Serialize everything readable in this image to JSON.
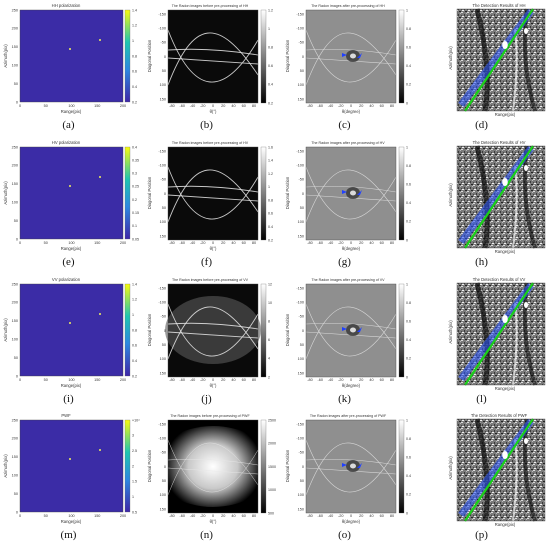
{
  "rows": [
    {
      "raw": {
        "title": "HH polarization",
        "xlabel": "Range(pix)",
        "ylabel": "Azimuth(pix)",
        "xticks": [
          "0",
          "50",
          "100",
          "150",
          "200"
        ],
        "yticks": [
          "250",
          "200",
          "150",
          "100",
          "50",
          "0"
        ],
        "cbar": [
          "1.4",
          "1.2",
          "1",
          "0.8",
          "0.6",
          "0.4",
          "0.2"
        ],
        "caption": "(a)"
      },
      "radon_before": {
        "title": "The Radon images before pre-processing of HH",
        "xlabel": "θ(°)",
        "ylabel": "Diagonal Position",
        "xticks": [
          "-80",
          "-60",
          "-40",
          "-20",
          "0",
          "20",
          "40",
          "60",
          "80"
        ],
        "yticks": [
          "-150",
          "-100",
          "-50",
          "0",
          "50",
          "100",
          "150"
        ],
        "cbar": [
          "1.2",
          "1",
          "0.8",
          "0.6",
          "0.4",
          "0.2"
        ],
        "caption": "(b)"
      },
      "radon_after": {
        "title": "The Radon images after pre-processing of HH",
        "xlabel": "θ(degree)",
        "ylabel": "Diagonal Position",
        "xticks": [
          "-80",
          "-60",
          "-40",
          "-20",
          "0",
          "20",
          "40",
          "60",
          "80"
        ],
        "yticks": [
          "-150",
          "-100",
          "-50",
          "0",
          "50",
          "100",
          "150"
        ],
        "cbar": [
          "1",
          "0.8",
          "0.6",
          "0.4",
          "0.2",
          "0"
        ],
        "caption": "(c)"
      },
      "detection": {
        "title": "The Detection Results of HH",
        "xlabel": "Range(pix)",
        "ylabel": "Azimuth(pix)",
        "caption": "(d)"
      }
    },
    {
      "raw": {
        "title": "HV polarization",
        "xlabel": "Range(pix)",
        "ylabel": "Azimuth(pix)",
        "xticks": [
          "0",
          "50",
          "100",
          "150",
          "200"
        ],
        "yticks": [
          "250",
          "200",
          "150",
          "100",
          "50",
          "0"
        ],
        "cbar": [
          "0.4",
          "0.35",
          "0.3",
          "0.25",
          "0.2",
          "0.15",
          "0.1",
          "0.05"
        ],
        "caption": "(e)"
      },
      "radon_before": {
        "title": "The Radon images before pre-processing of HV",
        "xlabel": "θ(°)",
        "ylabel": "Diagonal Position",
        "xticks": [
          "-80",
          "-60",
          "-40",
          "-20",
          "0",
          "20",
          "40",
          "60",
          "80"
        ],
        "yticks": [
          "-150",
          "-100",
          "-50",
          "0",
          "50",
          "100",
          "150"
        ],
        "cbar": [
          "1.6",
          "1.4",
          "1.2",
          "1",
          "0.8",
          "0.6",
          "0.4",
          "0.2"
        ],
        "caption": "(f)"
      },
      "radon_after": {
        "title": "The Radon images after pre-processing of HV",
        "xlabel": "θ(degree)",
        "ylabel": "Diagonal Position",
        "xticks": [
          "-80",
          "-60",
          "-40",
          "-20",
          "0",
          "20",
          "40",
          "60",
          "80"
        ],
        "yticks": [
          "-150",
          "-100",
          "-50",
          "0",
          "50",
          "100",
          "150"
        ],
        "cbar": [
          "1",
          "0.8",
          "0.6",
          "0.4",
          "0.2",
          "0"
        ],
        "caption": "(g)"
      },
      "detection": {
        "title": "The Detection Results of HV",
        "xlabel": "Range(pix)",
        "ylabel": "Azimuth(pix)",
        "caption": "(h)"
      }
    },
    {
      "raw": {
        "title": "VV polarization",
        "xlabel": "Range(pix)",
        "ylabel": "Azimuth(pix)",
        "xticks": [
          "0",
          "50",
          "100",
          "150",
          "200"
        ],
        "yticks": [
          "250",
          "200",
          "150",
          "100",
          "50",
          "0"
        ],
        "cbar": [
          "1.4",
          "1.2",
          "1",
          "0.8",
          "0.6",
          "0.4",
          "0.2"
        ],
        "caption": "(i)"
      },
      "radon_before": {
        "title": "The Radon images before pre-processing of VV",
        "xlabel": "θ(°)",
        "ylabel": "Diagonal Position",
        "xticks": [
          "-80",
          "-60",
          "-40",
          "-20",
          "0",
          "20",
          "40",
          "60",
          "80"
        ],
        "yticks": [
          "-150",
          "-100",
          "-50",
          "0",
          "50",
          "100",
          "150"
        ],
        "cbar": [
          "12",
          "10",
          "8",
          "6",
          "4",
          "2"
        ],
        "caption": "(j)"
      },
      "radon_after": {
        "title": "The Radon images after pre-processing of VV",
        "xlabel": "θ(degree)",
        "ylabel": "Diagonal Position",
        "xticks": [
          "-80",
          "-60",
          "-40",
          "-20",
          "0",
          "20",
          "40",
          "60",
          "80"
        ],
        "yticks": [
          "-150",
          "-100",
          "-50",
          "0",
          "50",
          "100",
          "150"
        ],
        "cbar": [
          "1",
          "0.8",
          "0.6",
          "0.4",
          "0.2",
          "0"
        ],
        "caption": "(k)"
      },
      "detection": {
        "title": "The Detection Results of VV",
        "xlabel": "Range(pix)",
        "ylabel": "Azimuth(pix)",
        "caption": "(l)"
      }
    },
    {
      "raw": {
        "title": "PWF",
        "xlabel": "Range(pix)",
        "ylabel": "Azimuth(pix)",
        "xticks": [
          "0",
          "50",
          "100",
          "150",
          "200"
        ],
        "yticks": [
          "250",
          "200",
          "150",
          "100",
          "50",
          "0"
        ],
        "cbar": [
          "×10⁴",
          "3",
          "2.5",
          "2",
          "1.5",
          "1",
          "0.5"
        ],
        "caption": "(m)"
      },
      "radon_before": {
        "title": "The Radon images before pre-processing of PWF",
        "xlabel": "θ(°)",
        "ylabel": "Diagonal Position",
        "xticks": [
          "-80",
          "-60",
          "-40",
          "-20",
          "0",
          "20",
          "40",
          "60",
          "80"
        ],
        "yticks": [
          "-150",
          "-100",
          "-50",
          "0",
          "50",
          "100",
          "150"
        ],
        "cbar": [
          "2500",
          "2000",
          "1500",
          "1000",
          "500"
        ],
        "caption": "(n)"
      },
      "radon_after": {
        "title": "The Radon images after pre-processing of PWF",
        "xlabel": "θ(degree)",
        "ylabel": "Diagonal Position",
        "xticks": [
          "-80",
          "-60",
          "-40",
          "-20",
          "0",
          "20",
          "40",
          "60",
          "80"
        ],
        "yticks": [
          "-150",
          "-100",
          "-50",
          "0",
          "50",
          "100",
          "150"
        ],
        "cbar": [
          "1",
          "0.8",
          "0.6",
          "0.4",
          "0.2",
          "0"
        ],
        "caption": "(o)"
      },
      "detection": {
        "title": "The Detection Results of PWF",
        "xlabel": "Range(pix)",
        "ylabel": "Azimuth(pix)",
        "caption": "(p)"
      }
    }
  ],
  "colors": {
    "parula_dark": "#3e26a8",
    "parula_mid": "#2e87e0",
    "parula_cyan": "#1fc5b0",
    "parula_yellow": "#f9fb0e",
    "line_green": "#1ad11a",
    "line_blue": "#2a55ff"
  }
}
